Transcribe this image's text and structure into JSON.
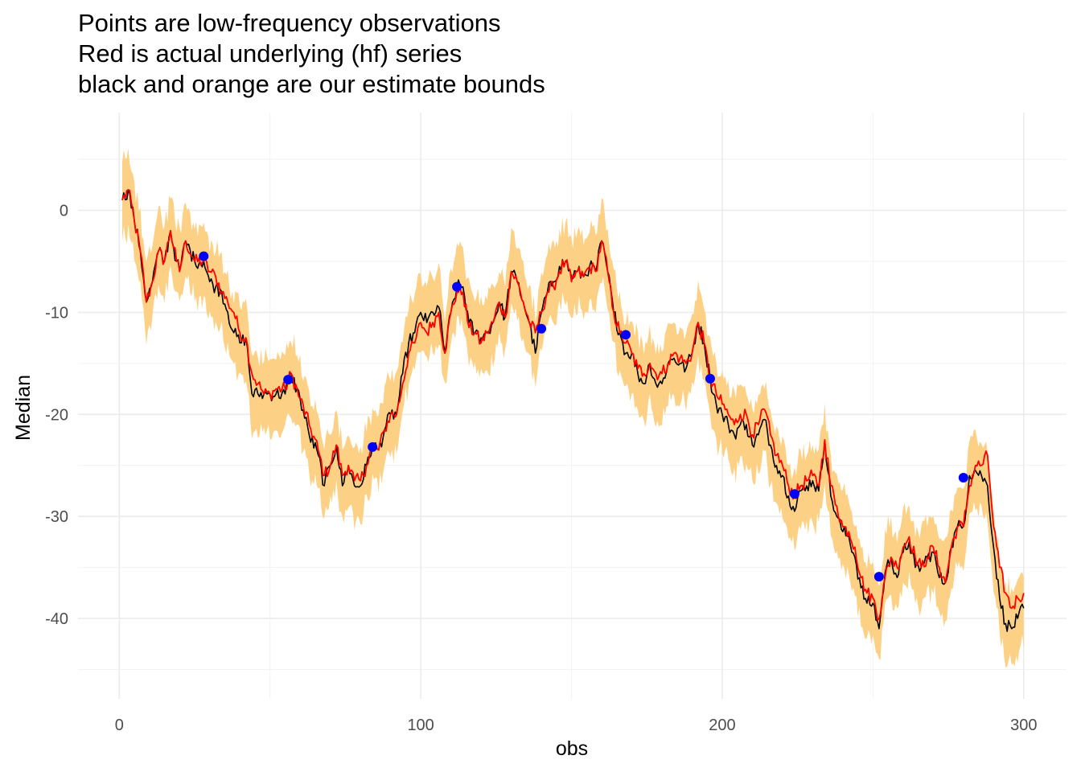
{
  "title_lines": [
    "Points are low-frequency observations",
    "Red is actual underlying (hf) series",
    "black and orange are our estimate bounds"
  ],
  "chart_data": {
    "type": "line",
    "title": "Points are low-frequency observations\nRed is actual underlying (hf) series\nblack and orange are our estimate bounds",
    "xlabel": "obs",
    "ylabel": "Median",
    "xlim": [
      -12,
      313
    ],
    "ylim": [
      -48,
      9
    ],
    "xticks": [
      0,
      100,
      200,
      300
    ],
    "yticks": [
      0,
      -10,
      -20,
      -30,
      -40
    ],
    "grid": true,
    "colors": {
      "band": "#fdd185",
      "median": "#000000",
      "actual": "#ff0000",
      "points": "#0000ff",
      "grid": "#ebebeb"
    },
    "actual_anchors": [
      [
        1,
        1
      ],
      [
        3,
        2
      ],
      [
        5,
        -1
      ],
      [
        7,
        -4
      ],
      [
        9,
        -9
      ],
      [
        11,
        -7
      ],
      [
        13,
        -4
      ],
      [
        15,
        -5
      ],
      [
        17,
        -2
      ],
      [
        19,
        -5
      ],
      [
        20,
        -6
      ],
      [
        22,
        -3
      ],
      [
        25,
        -5
      ],
      [
        28,
        -5
      ],
      [
        30,
        -6
      ],
      [
        32,
        -6.5
      ],
      [
        34,
        -8
      ],
      [
        36,
        -9
      ],
      [
        38,
        -10
      ],
      [
        40,
        -12
      ],
      [
        42,
        -12.5
      ],
      [
        44,
        -16
      ],
      [
        46,
        -17
      ],
      [
        48,
        -18
      ],
      [
        50,
        -18
      ],
      [
        52,
        -17.5
      ],
      [
        55,
        -17.5
      ],
      [
        57,
        -16
      ],
      [
        60,
        -18.5
      ],
      [
        63,
        -21
      ],
      [
        66,
        -23.5
      ],
      [
        68,
        -26
      ],
      [
        70,
        -25
      ],
      [
        72,
        -23
      ],
      [
        74,
        -26
      ],
      [
        76,
        -25
      ],
      [
        78,
        -26.5
      ],
      [
        80,
        -26.5
      ],
      [
        82,
        -25
      ],
      [
        84,
        -23
      ],
      [
        86,
        -23.5
      ],
      [
        88,
        -21.5
      ],
      [
        90,
        -20
      ],
      [
        92,
        -20
      ],
      [
        94,
        -17
      ],
      [
        96,
        -14
      ],
      [
        98,
        -13
      ],
      [
        100,
        -11
      ],
      [
        102,
        -12
      ],
      [
        104,
        -11
      ],
      [
        106,
        -10
      ],
      [
        108,
        -14
      ],
      [
        110,
        -10
      ],
      [
        112,
        -8
      ],
      [
        114,
        -8
      ],
      [
        116,
        -11.5
      ],
      [
        118,
        -12
      ],
      [
        120,
        -13
      ],
      [
        122,
        -12
      ],
      [
        124,
        -11
      ],
      [
        126,
        -9
      ],
      [
        128,
        -10.5
      ],
      [
        130,
        -6
      ],
      [
        132,
        -7
      ],
      [
        134,
        -9
      ],
      [
        136,
        -11
      ],
      [
        138,
        -12
      ],
      [
        140,
        -10
      ],
      [
        142,
        -8
      ],
      [
        144,
        -7.5
      ],
      [
        146,
        -6
      ],
      [
        148,
        -5
      ],
      [
        150,
        -7
      ],
      [
        152,
        -6
      ],
      [
        154,
        -6.5
      ],
      [
        156,
        -5.5
      ],
      [
        158,
        -6
      ],
      [
        160,
        -3
      ],
      [
        162,
        -6
      ],
      [
        164,
        -10
      ],
      [
        166,
        -12
      ],
      [
        168,
        -13
      ],
      [
        170,
        -14
      ],
      [
        172,
        -15.5
      ],
      [
        174,
        -16
      ],
      [
        176,
        -15
      ],
      [
        178,
        -16
      ],
      [
        180,
        -16
      ],
      [
        182,
        -15
      ],
      [
        184,
        -14
      ],
      [
        186,
        -14.5
      ],
      [
        188,
        -15
      ],
      [
        190,
        -14
      ],
      [
        192,
        -11
      ],
      [
        194,
        -13
      ],
      [
        196,
        -16.5
      ],
      [
        198,
        -18
      ],
      [
        200,
        -19
      ],
      [
        202,
        -20
      ],
      [
        204,
        -21
      ],
      [
        206,
        -20
      ],
      [
        208,
        -20
      ],
      [
        210,
        -22
      ],
      [
        212,
        -21
      ],
      [
        214,
        -19.5
      ],
      [
        216,
        -22
      ],
      [
        218,
        -24
      ],
      [
        220,
        -25
      ],
      [
        222,
        -27
      ],
      [
        224,
        -28
      ],
      [
        226,
        -27
      ],
      [
        228,
        -26.5
      ],
      [
        230,
        -26
      ],
      [
        232,
        -27
      ],
      [
        234,
        -22.5
      ],
      [
        236,
        -27
      ],
      [
        238,
        -29
      ],
      [
        240,
        -31
      ],
      [
        242,
        -31.5
      ],
      [
        244,
        -33
      ],
      [
        246,
        -36
      ],
      [
        248,
        -37.5
      ],
      [
        250,
        -38
      ],
      [
        252,
        -40
      ],
      [
        254,
        -36
      ],
      [
        256,
        -34
      ],
      [
        258,
        -35
      ],
      [
        260,
        -33
      ],
      [
        262,
        -32
      ],
      [
        264,
        -34
      ],
      [
        266,
        -35
      ],
      [
        268,
        -34
      ],
      [
        270,
        -33
      ],
      [
        272,
        -35
      ],
      [
        274,
        -36.5
      ],
      [
        276,
        -33
      ],
      [
        278,
        -31
      ],
      [
        280,
        -31
      ],
      [
        282,
        -27
      ],
      [
        284,
        -25
      ],
      [
        286,
        -25
      ],
      [
        288,
        -24
      ],
      [
        290,
        -31
      ],
      [
        292,
        -35
      ],
      [
        294,
        -37.5
      ],
      [
        296,
        -39
      ],
      [
        298,
        -38
      ],
      [
        300,
        -37.5
      ]
    ],
    "actual_final": -37.5,
    "median_anchors": [
      [
        1,
        1
      ],
      [
        3,
        2
      ],
      [
        5,
        -1
      ],
      [
        7,
        -4
      ],
      [
        9,
        -9
      ],
      [
        11,
        -7
      ],
      [
        13,
        -4
      ],
      [
        15,
        -5
      ],
      [
        17,
        -2
      ],
      [
        19,
        -5
      ],
      [
        20,
        -6
      ],
      [
        22,
        -3
      ],
      [
        25,
        -5
      ],
      [
        28,
        -5
      ],
      [
        30,
        -7
      ],
      [
        32,
        -7.5
      ],
      [
        34,
        -8
      ],
      [
        36,
        -10
      ],
      [
        38,
        -12
      ],
      [
        40,
        -13
      ],
      [
        42,
        -12.5
      ],
      [
        44,
        -18
      ],
      [
        46,
        -18
      ],
      [
        48,
        -18
      ],
      [
        50,
        -18
      ],
      [
        52,
        -18
      ],
      [
        55,
        -18
      ],
      [
        57,
        -16
      ],
      [
        60,
        -18.5
      ],
      [
        63,
        -22
      ],
      [
        66,
        -24
      ],
      [
        68,
        -27
      ],
      [
        70,
        -25
      ],
      [
        72,
        -23
      ],
      [
        74,
        -27
      ],
      [
        76,
        -25
      ],
      [
        78,
        -27
      ],
      [
        80,
        -27
      ],
      [
        82,
        -25
      ],
      [
        84,
        -23
      ],
      [
        86,
        -23.5
      ],
      [
        88,
        -21.5
      ],
      [
        90,
        -20
      ],
      [
        92,
        -20
      ],
      [
        94,
        -16
      ],
      [
        96,
        -13
      ],
      [
        98,
        -12
      ],
      [
        100,
        -10
      ],
      [
        102,
        -11
      ],
      [
        104,
        -10
      ],
      [
        106,
        -9.5
      ],
      [
        108,
        -14
      ],
      [
        110,
        -10
      ],
      [
        112,
        -7.5
      ],
      [
        114,
        -7.5
      ],
      [
        116,
        -11
      ],
      [
        118,
        -12
      ],
      [
        120,
        -12.5
      ],
      [
        122,
        -12
      ],
      [
        124,
        -11
      ],
      [
        126,
        -9
      ],
      [
        128,
        -10.5
      ],
      [
        130,
        -6
      ],
      [
        132,
        -7
      ],
      [
        134,
        -9
      ],
      [
        136,
        -11
      ],
      [
        138,
        -14
      ],
      [
        140,
        -10
      ],
      [
        142,
        -8
      ],
      [
        144,
        -7
      ],
      [
        146,
        -5.5
      ],
      [
        148,
        -5
      ],
      [
        150,
        -6.5
      ],
      [
        152,
        -6
      ],
      [
        154,
        -6.5
      ],
      [
        156,
        -5.5
      ],
      [
        158,
        -6
      ],
      [
        160,
        -3
      ],
      [
        162,
        -6
      ],
      [
        164,
        -10
      ],
      [
        166,
        -12
      ],
      [
        168,
        -14
      ],
      [
        170,
        -14
      ],
      [
        172,
        -16
      ],
      [
        174,
        -17
      ],
      [
        176,
        -15
      ],
      [
        178,
        -17
      ],
      [
        180,
        -17
      ],
      [
        182,
        -15
      ],
      [
        184,
        -14.5
      ],
      [
        186,
        -15
      ],
      [
        188,
        -15.5
      ],
      [
        190,
        -14
      ],
      [
        192,
        -11
      ],
      [
        194,
        -13
      ],
      [
        196,
        -16.5
      ],
      [
        198,
        -19
      ],
      [
        200,
        -20
      ],
      [
        202,
        -21
      ],
      [
        204,
        -22
      ],
      [
        206,
        -21
      ],
      [
        208,
        -21
      ],
      [
        210,
        -23
      ],
      [
        212,
        -22
      ],
      [
        214,
        -20.5
      ],
      [
        216,
        -23
      ],
      [
        218,
        -25
      ],
      [
        220,
        -26
      ],
      [
        222,
        -28
      ],
      [
        224,
        -29.5
      ],
      [
        226,
        -27.5
      ],
      [
        228,
        -27
      ],
      [
        230,
        -26.5
      ],
      [
        232,
        -27.5
      ],
      [
        234,
        -22.5
      ],
      [
        236,
        -28
      ],
      [
        238,
        -30
      ],
      [
        240,
        -31.5
      ],
      [
        242,
        -32
      ],
      [
        244,
        -34
      ],
      [
        246,
        -37
      ],
      [
        248,
        -38.5
      ],
      [
        250,
        -38.5
      ],
      [
        252,
        -41
      ],
      [
        254,
        -35.5
      ],
      [
        256,
        -34
      ],
      [
        258,
        -36
      ],
      [
        260,
        -33.5
      ],
      [
        262,
        -32.5
      ],
      [
        264,
        -35
      ],
      [
        266,
        -35
      ],
      [
        268,
        -34
      ],
      [
        270,
        -33.5
      ],
      [
        272,
        -36
      ],
      [
        274,
        -36.5
      ],
      [
        276,
        -33
      ],
      [
        278,
        -31
      ],
      [
        280,
        -31
      ],
      [
        282,
        -26
      ],
      [
        284,
        -25.5
      ],
      [
        286,
        -26
      ],
      [
        288,
        -27
      ],
      [
        290,
        -33
      ],
      [
        292,
        -38
      ],
      [
        294,
        -40.5
      ],
      [
        296,
        -41
      ],
      [
        298,
        -40
      ],
      [
        300,
        -39
      ]
    ],
    "band_halfwidth": 3.3,
    "points": [
      [
        28,
        -4.5
      ],
      [
        56,
        -16.6
      ],
      [
        84,
        -23.2
      ],
      [
        112,
        -7.5
      ],
      [
        140,
        -11.6
      ],
      [
        168,
        -12.2
      ],
      [
        196,
        -16.5
      ],
      [
        224,
        -27.8
      ],
      [
        252,
        -35.9
      ],
      [
        280,
        -26.2
      ]
    ]
  }
}
